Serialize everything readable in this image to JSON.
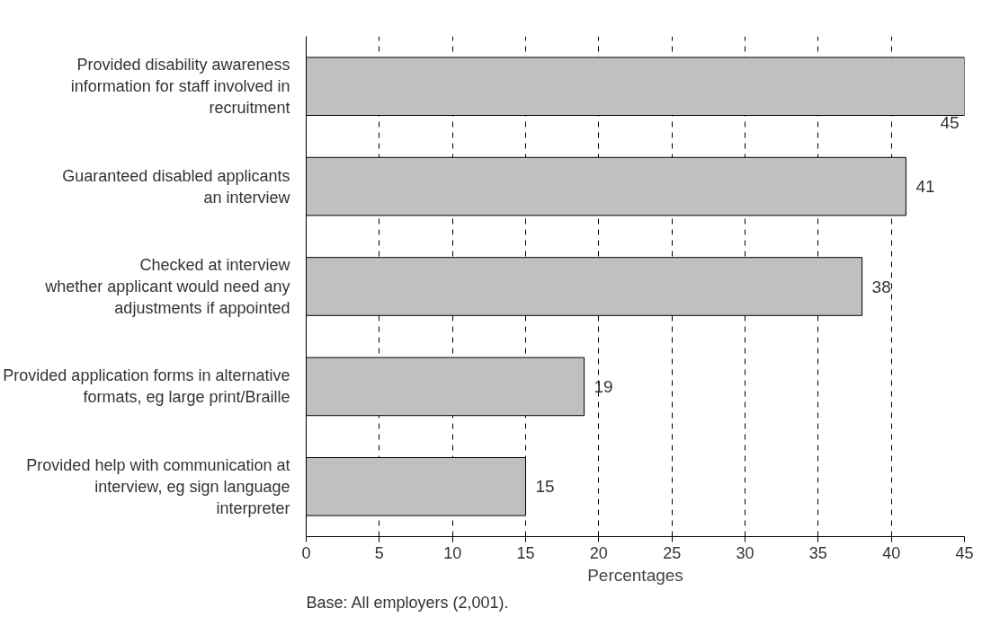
{
  "chart_data": {
    "type": "bar",
    "orientation": "horizontal",
    "categories": [
      "Provided disability awareness\ninformation for staff involved in\nrecruitment",
      "Guaranteed disabled applicants\nan interview",
      "Checked at interview\nwhether applicant would need any\nadjustments if appointed",
      "Provided application forms in alternative\nformats, eg large print/Braille",
      "Provided help with communication at\ninterview, eg sign language\ninterpreter"
    ],
    "values": [
      45,
      41,
      38,
      19,
      15
    ],
    "color": "#c0c0c0",
    "xlim": [
      0,
      45
    ],
    "xticks": [
      0,
      5,
      10,
      15,
      20,
      25,
      30,
      35,
      40,
      45
    ],
    "xlabel": "Percentages",
    "grid": "x",
    "data_labels": true,
    "annotations": [
      "Base: All employers (2,001)."
    ]
  }
}
